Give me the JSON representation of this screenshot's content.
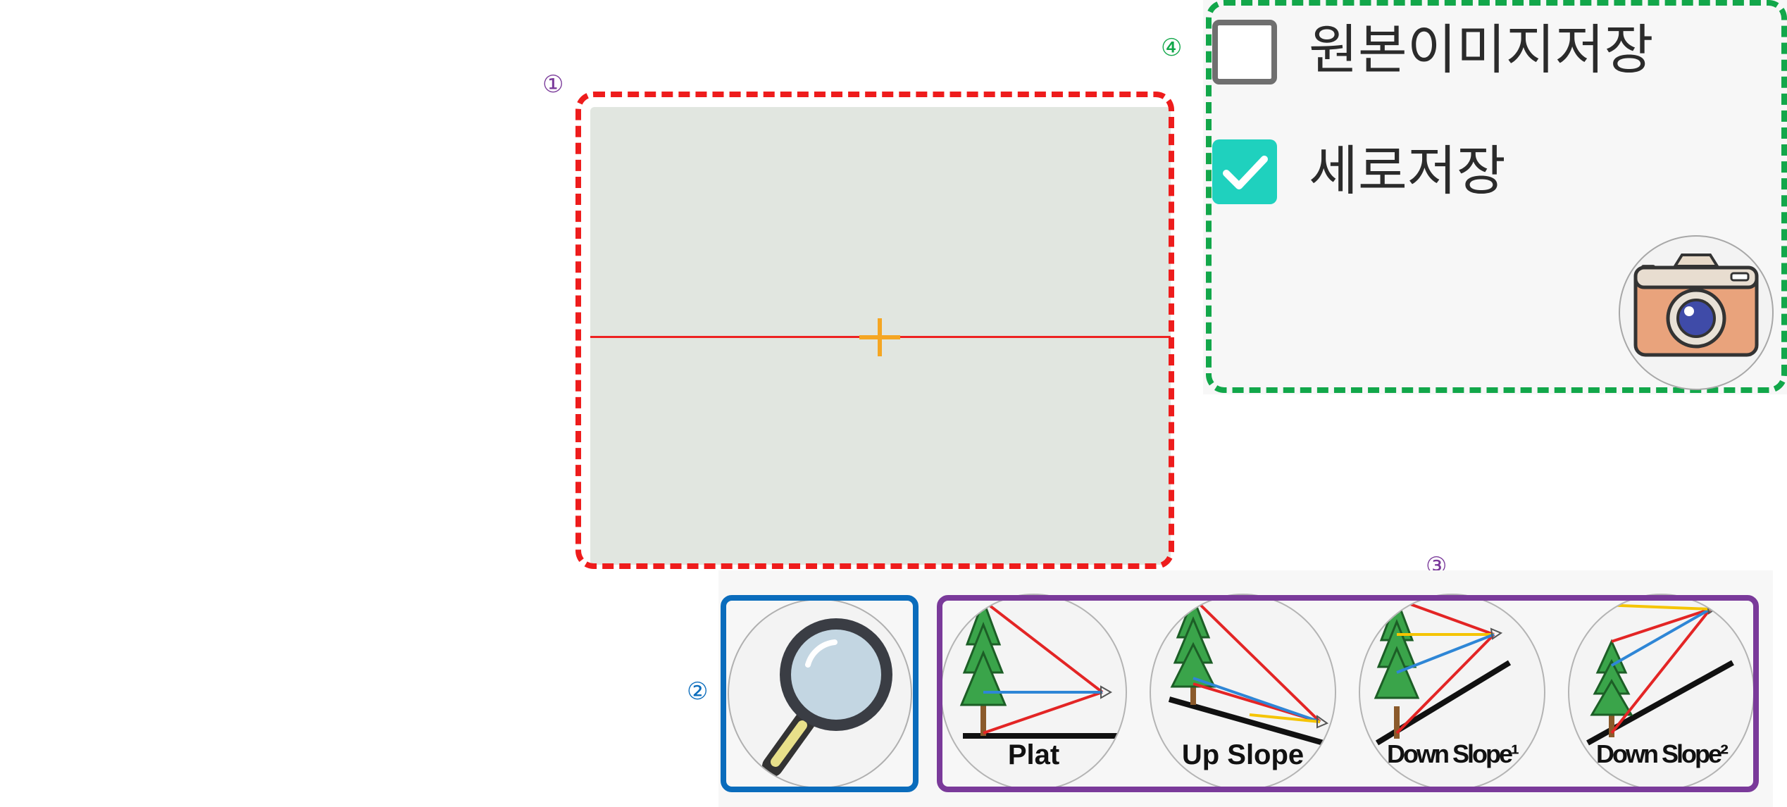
{
  "markers": {
    "m1": "①",
    "m2": "②",
    "m3": "③",
    "m4": "④"
  },
  "colors": {
    "preview_outline": "#ee1c1c",
    "options_outline": "#12a74a",
    "zoom_outline": "#0a6cbc",
    "modes_outline": "#7a3a9a",
    "check_active": "#1fd1be",
    "crosshair": "#f5a623"
  },
  "options": {
    "original_image_save": {
      "label": "원본이미지저장",
      "checked": false
    },
    "vertical_save": {
      "label": "세로저장",
      "checked": true
    },
    "camera_icon": "camera-icon"
  },
  "toolbar": {
    "zoom_icon": "magnifier-icon",
    "modes": [
      {
        "label": "Plat",
        "icon": "tree-plat-icon"
      },
      {
        "label": "Up Slope",
        "icon": "tree-up-slope-icon"
      },
      {
        "label": "Down Slope¹",
        "icon": "tree-down-slope-1-icon"
      },
      {
        "label": "Down Slope²",
        "icon": "tree-down-slope-2-icon"
      }
    ]
  }
}
